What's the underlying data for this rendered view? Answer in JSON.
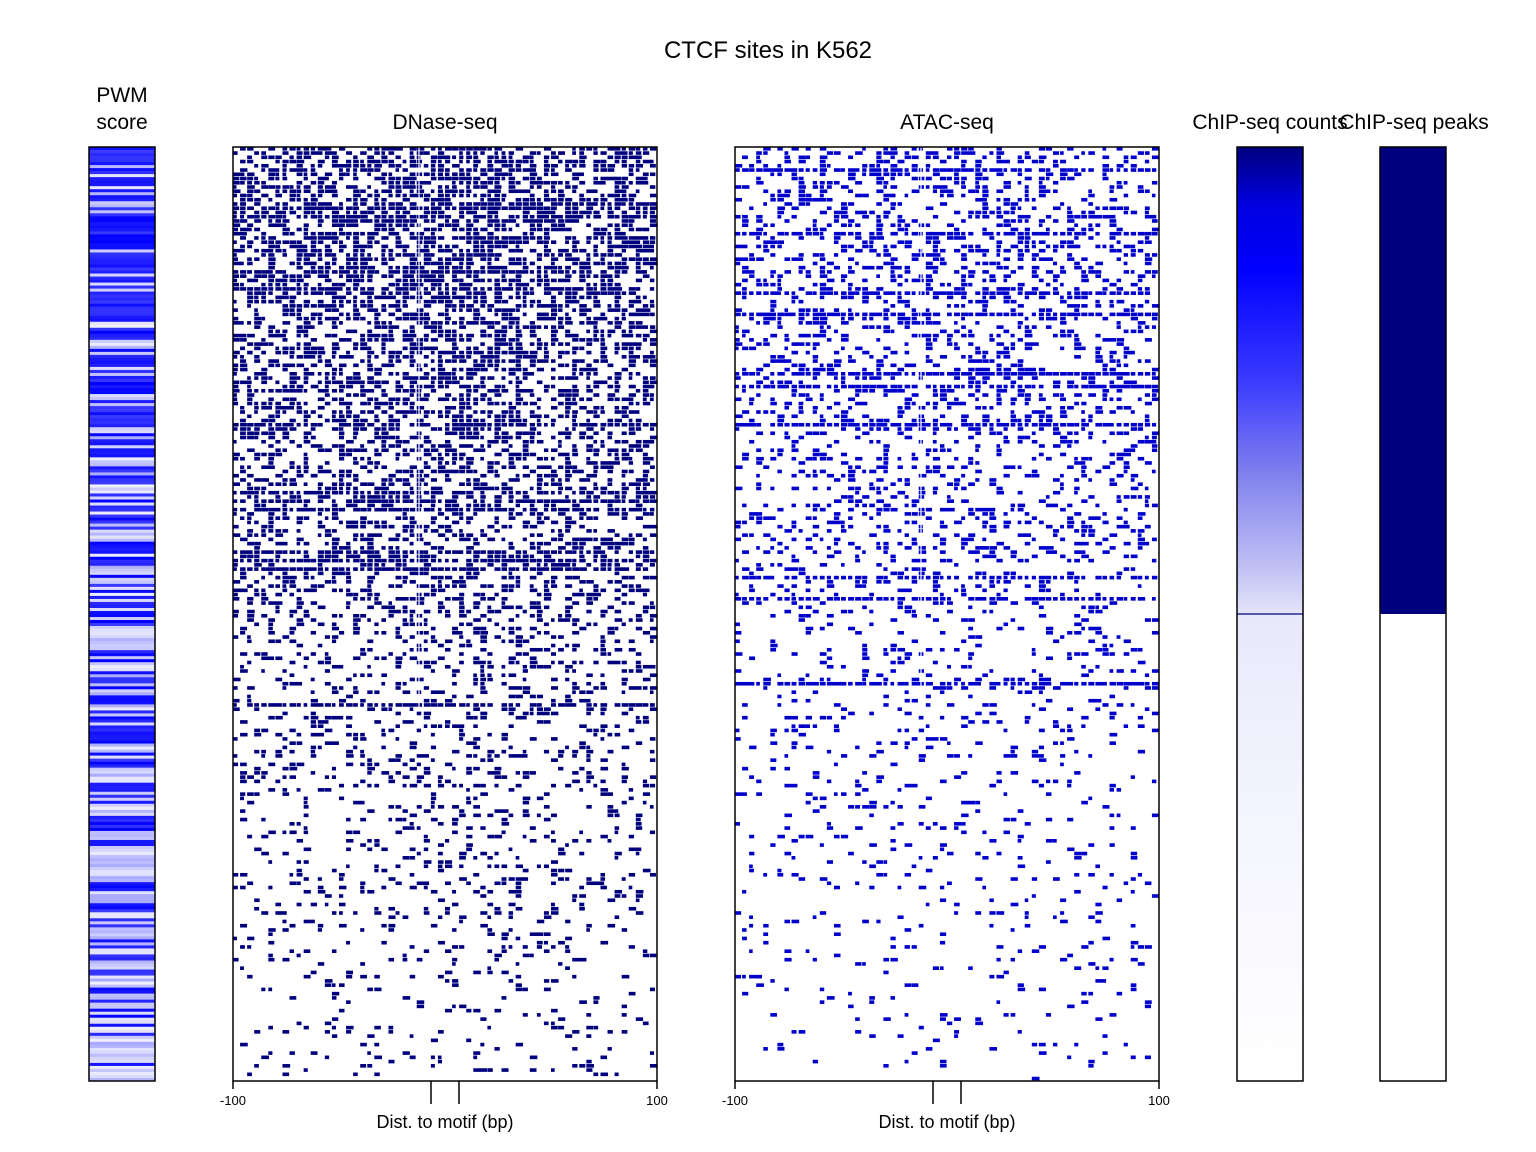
{
  "chart_data": [
    {
      "type": "heatmap",
      "title": "CTCF sites in K562",
      "panel_title": [
        "PWM",
        "score"
      ],
      "description_level": "per-row PWM score intensity, banded blue"
    },
    {
      "type": "heatmap",
      "panel_title": "DNase-seq",
      "xlabel": "Dist. to motif (bp)",
      "xlim": [
        -100,
        100
      ],
      "x_ticks": [
        "-100",
        "100"
      ],
      "motif_marks_bp": [
        -7,
        6
      ],
      "color": "#00007f"
    },
    {
      "type": "heatmap",
      "panel_title": "ATAC-seq",
      "xlabel": "Dist. to motif (bp)",
      "xlim": [
        -100,
        100
      ],
      "x_ticks": [
        "-100",
        "100"
      ],
      "motif_marks_bp": [
        -7,
        6
      ],
      "color": "#0000cc"
    },
    {
      "type": "heatmap",
      "panel_title": "ChIP-seq counts",
      "gradient_top_color": "#00007f",
      "gradient_mid_color": "#0000ff",
      "boundary_fraction": 0.5
    },
    {
      "type": "heatmap",
      "panel_title": "ChIP-seq peaks",
      "bound_fraction": 0.5,
      "bound_color": "#00007f",
      "unbound_color": "#ffffff"
    }
  ]
}
